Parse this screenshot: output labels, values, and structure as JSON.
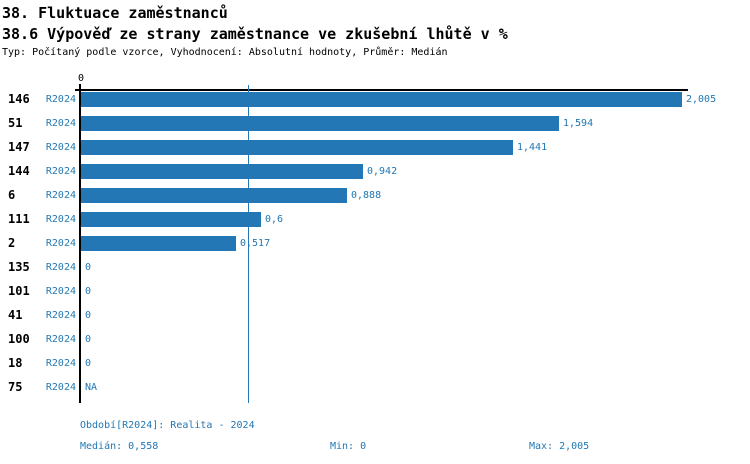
{
  "chart_data": {
    "type": "bar",
    "orientation": "horizontal",
    "title": "38. Fluktuace zaměstnanců",
    "subtitle": "38.6 Výpověď ze strany zaměstnance ve zkušební lhůtě v %",
    "meta": "Typ: Počítaný podle vzorce, Vyhodnocení: Absolutní hodnoty, Průměr: Medián",
    "axis_origin_label": "0",
    "xlim": [
      0,
      2.005
    ],
    "grid": false,
    "legend_position": "none",
    "series_label": "R2024",
    "median_value": 0.558,
    "categories": [
      "146",
      "51",
      "147",
      "144",
      "6",
      "111",
      "2",
      "135",
      "101",
      "41",
      "100",
      "18",
      "75"
    ],
    "rows": [
      {
        "id": "146",
        "period": "R2024",
        "value": 2.005,
        "label": "2,005"
      },
      {
        "id": "51",
        "period": "R2024",
        "value": 1.594,
        "label": "1,594"
      },
      {
        "id": "147",
        "period": "R2024",
        "value": 1.441,
        "label": "1,441"
      },
      {
        "id": "144",
        "period": "R2024",
        "value": 0.942,
        "label": "0,942"
      },
      {
        "id": "6",
        "period": "R2024",
        "value": 0.888,
        "label": "0,888"
      },
      {
        "id": "111",
        "period": "R2024",
        "value": 0.6,
        "label": "0,6"
      },
      {
        "id": "2",
        "period": "R2024",
        "value": 0.517,
        "label": "0,517"
      },
      {
        "id": "135",
        "period": "R2024",
        "value": 0,
        "label": "0"
      },
      {
        "id": "101",
        "period": "R2024",
        "value": 0,
        "label": "0"
      },
      {
        "id": "41",
        "period": "R2024",
        "value": 0,
        "label": "0"
      },
      {
        "id": "100",
        "period": "R2024",
        "value": 0,
        "label": "0"
      },
      {
        "id": "18",
        "period": "R2024",
        "value": 0,
        "label": "0"
      },
      {
        "id": "75",
        "period": "R2024",
        "value": null,
        "label": "NA"
      }
    ]
  },
  "footer": {
    "period_line": "Období[R2024]: Realita - 2024",
    "median": "Medián: 0,558",
    "min": "Min: 0",
    "max": "Max: 2,005"
  },
  "colors": {
    "accent_blue": "#2277b4",
    "text_black": "#000000",
    "background": "#ffffff"
  }
}
